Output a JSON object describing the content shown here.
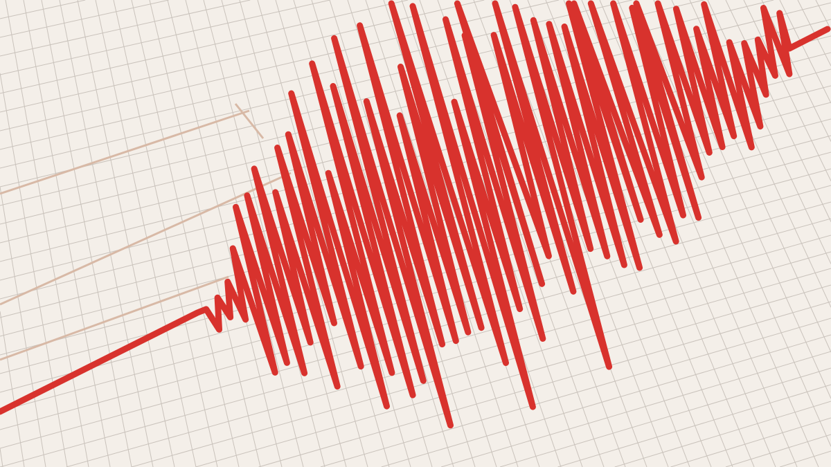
{
  "colors": {
    "paper": "#f4efe9",
    "grid": "#c9c2bb",
    "grid_major": "#d8b9a6",
    "trace": "#d8322d"
  }
}
